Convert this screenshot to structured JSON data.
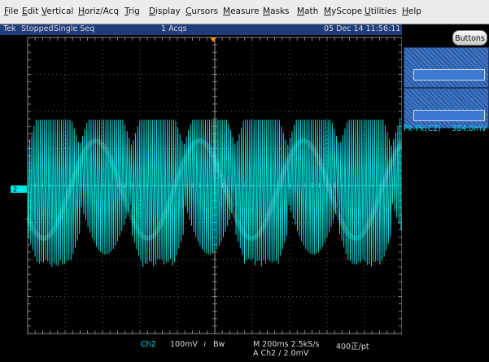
{
  "menu": {
    "items": [
      "File",
      "Edit",
      "Vertical",
      "Horiz/Acq",
      "Trig",
      "Display",
      "Cursors",
      "Measure",
      "Masks",
      "Math",
      "MyScope",
      "Utilities",
      "Help"
    ]
  },
  "status": {
    "brand": "Tek",
    "state": "Stopped",
    "mode": "Single Seq",
    "acqs": "1 Acqs",
    "datetime": "05 Dec 14 11:56:11"
  },
  "side": {
    "buttons_label": "Buttons",
    "measurement_label": "Pk-Pk(C2)",
    "measurement_value": "384.0mV"
  },
  "display": {
    "channel_marker": "2",
    "channel_color": "#00e5e5",
    "envelope_cycles": 3.6,
    "vertical_scale_mV_per_div": 100
  },
  "readout": {
    "channel": "Ch2",
    "volts_per_div": "100mV",
    "bw_symbol": "Bw",
    "timebase": "M 200ms 2.5kS/s",
    "points": "400正/pt",
    "trigger": "A  Ch2  ∕  2.0mV"
  }
}
